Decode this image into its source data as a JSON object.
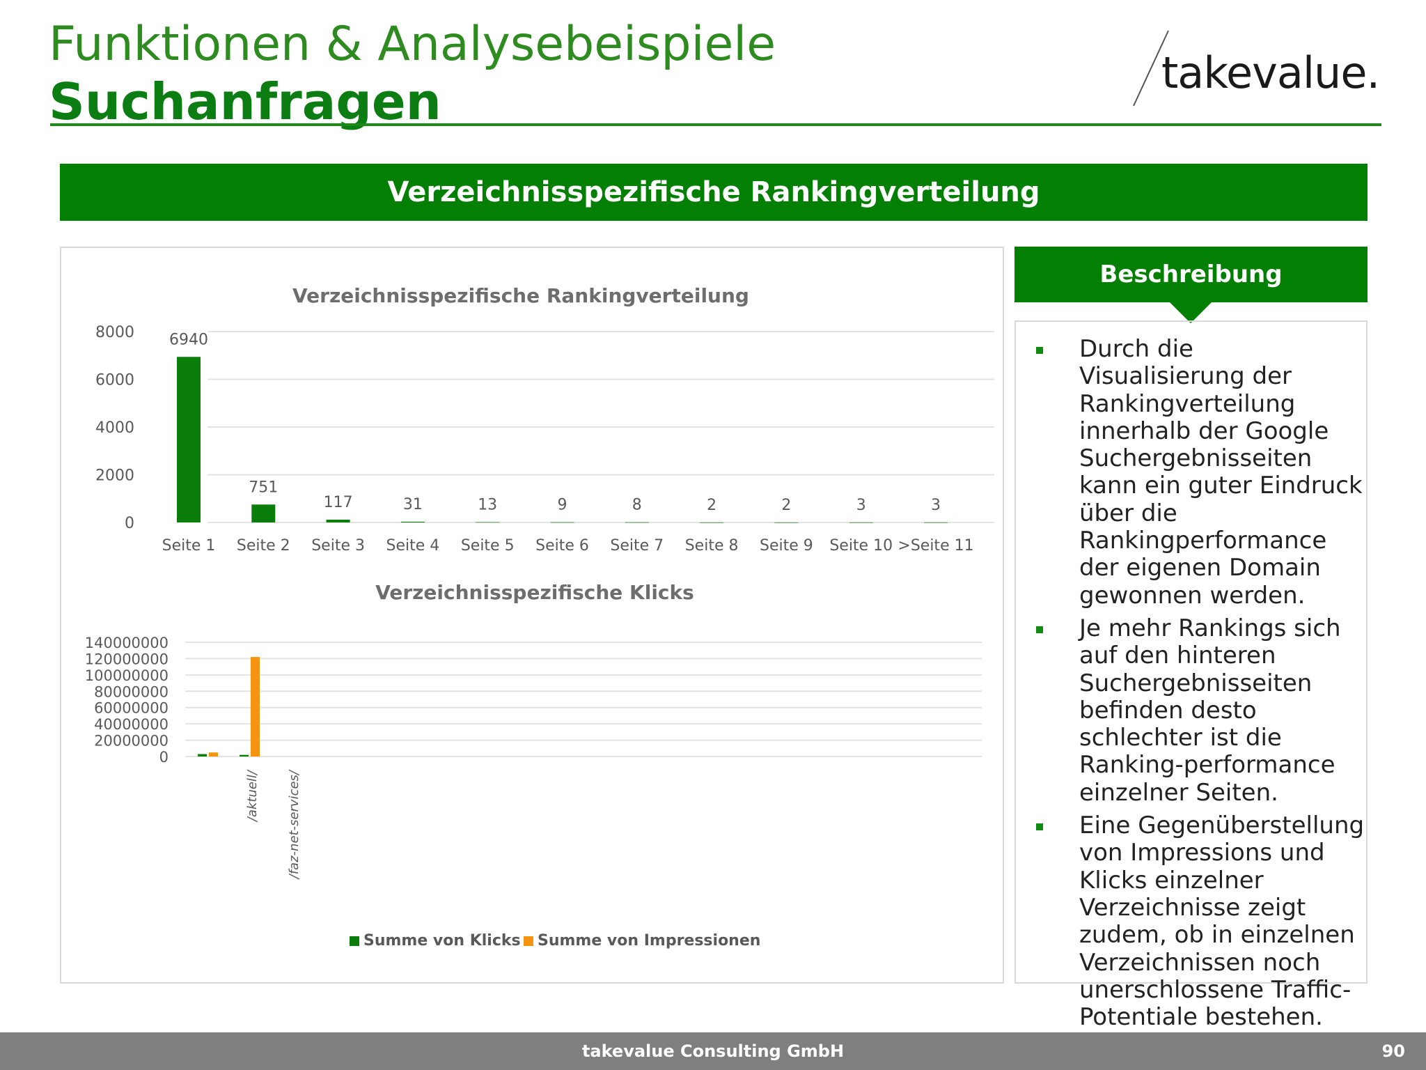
{
  "header": {
    "title": "Funktionen & Analysebeispiele",
    "subtitle": "Suchanfragen",
    "logo_text": "takevalue."
  },
  "banner": "Verzeichnisspezifische Rankingverteilung",
  "description": {
    "heading": "Beschreibung",
    "bullets": [
      "Durch die Visualisierung der Rankingverteilung innerhalb der Google Suchergebnisseiten kann ein guter Eindruck über die Rankingperformance der eigenen Domain gewonnen werden.",
      "Je mehr Rankings sich auf den hinteren Suchergebnisseiten befinden desto schlechter ist die Ranking-performance einzelner Seiten.",
      "Eine Gegenüberstellung von Impressions und Klicks einzelner Verzeichnisse zeigt zudem, ob in einzelnen Verzeichnissen noch unerschlossene Traffic-Potentiale bestehen."
    ]
  },
  "footer": {
    "company": "takevalue Consulting GmbH",
    "page": "90"
  },
  "colors": {
    "brand_green": "#038003",
    "bar_green": "#0a7d0a",
    "bar_orange": "#f5950f",
    "footer_gray": "#7f7f7f"
  },
  "chart_data": [
    {
      "type": "bar",
      "title": "Verzeichnisspezifische Rankingverteilung",
      "categories": [
        "Seite 1",
        "Seite 2",
        "Seite 3",
        "Seite 4",
        "Seite 5",
        "Seite 6",
        "Seite 7",
        "Seite 8",
        "Seite 9",
        "Seite 10",
        ">Seite 11"
      ],
      "values": [
        6940,
        751,
        117,
        31,
        13,
        9,
        8,
        2,
        2,
        3,
        3
      ],
      "ylim": [
        0,
        8000
      ],
      "yticks": [
        0,
        2000,
        4000,
        6000,
        8000
      ],
      "grid": true,
      "data_labels": true
    },
    {
      "type": "bar",
      "title": "Verzeichnisspezifische Klicks",
      "categories": [
        "",
        "/aktuell/",
        "/faz-net-services/"
      ],
      "series": [
        {
          "name": "Summe von Klicks",
          "values": [
            3000000,
            2000000,
            0
          ]
        },
        {
          "name": "Summe von Impressionen",
          "values": [
            5000000,
            122000000,
            0
          ]
        }
      ],
      "ylim": [
        0,
        140000000
      ],
      "yticks": [
        0,
        20000000,
        40000000,
        60000000,
        80000000,
        100000000,
        120000000,
        140000000
      ],
      "grid": true,
      "legend": "bottom"
    }
  ]
}
